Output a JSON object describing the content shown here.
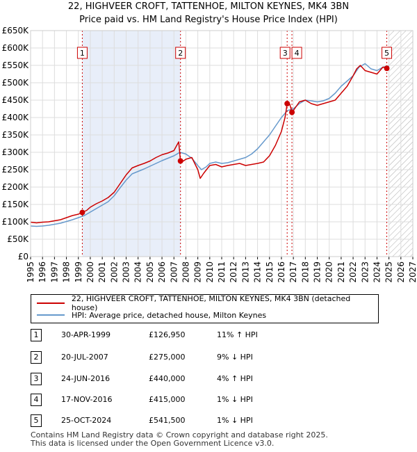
{
  "title": "22, HIGHVEER CROFT, TATTENHOE, MILTON KEYNES, MK4 3BN",
  "subtitle": "Price paid vs. HM Land Registry's House Price Index (HPI)",
  "colors": {
    "property": "#cc0000",
    "hpi": "#6699cc",
    "shade": "#e8eef9",
    "grid": "#dddddd"
  },
  "chart_data": {
    "type": "line",
    "title": "Price paid vs. HM Land Registry's House Price Index (HPI)",
    "xlim": [
      1995,
      2027
    ],
    "ylim": [
      0,
      650000
    ],
    "x_ticks": [
      "1995",
      "1996",
      "1997",
      "1998",
      "1999",
      "2000",
      "2001",
      "2002",
      "2003",
      "2004",
      "2005",
      "2006",
      "2007",
      "2008",
      "2009",
      "2010",
      "2011",
      "2012",
      "2013",
      "2014",
      "2015",
      "2016",
      "2017",
      "2018",
      "2019",
      "2020",
      "2021",
      "2022",
      "2023",
      "2024",
      "2025",
      "2026",
      "2027"
    ],
    "y_ticks": [
      {
        "value": 0,
        "label": "£0"
      },
      {
        "value": 50000,
        "label": "£50K"
      },
      {
        "value": 100000,
        "label": "£100K"
      },
      {
        "value": 150000,
        "label": "£150K"
      },
      {
        "value": 200000,
        "label": "£200K"
      },
      {
        "value": 250000,
        "label": "£250K"
      },
      {
        "value": 300000,
        "label": "£300K"
      },
      {
        "value": 350000,
        "label": "£350K"
      },
      {
        "value": 400000,
        "label": "£400K"
      },
      {
        "value": 450000,
        "label": "£450K"
      },
      {
        "value": 500000,
        "label": "£500K"
      },
      {
        "value": 550000,
        "label": "£550K"
      },
      {
        "value": 600000,
        "label": "£600K"
      },
      {
        "value": 650000,
        "label": "£650K"
      }
    ],
    "shaded_period": [
      1999.33,
      2007.55
    ],
    "forecast_from": 2025.0,
    "series": [
      {
        "name": "22, HIGHVEER CROFT, TATTENHOE, MILTON KEYNES, MK4 3BN (detached house)",
        "color": "#cc0000",
        "x": [
          1995,
          1995.5,
          1996,
          1996.5,
          1997,
          1997.5,
          1998,
          1998.5,
          1999,
          1999.33,
          1999.7,
          2000,
          2000.5,
          2001,
          2001.5,
          2002,
          2002.5,
          2003,
          2003.5,
          2004,
          2004.5,
          2005,
          2005.5,
          2006,
          2006.5,
          2007,
          2007.4,
          2007.55,
          2007.8,
          2008,
          2008.5,
          2009,
          2009.2,
          2009.5,
          2010,
          2010.5,
          2011,
          2011.5,
          2012,
          2012.5,
          2013,
          2013.5,
          2014,
          2014.5,
          2015,
          2015.5,
          2016,
          2016.3,
          2016.48,
          2016.7,
          2016.88,
          2017,
          2017.5,
          2018,
          2018.5,
          2019,
          2019.5,
          2020,
          2020.5,
          2021,
          2021.5,
          2022,
          2022.3,
          2022.6,
          2023,
          2023.5,
          2024,
          2024.5,
          2024.82
        ],
        "values": [
          99000,
          97000,
          99000,
          100000,
          103000,
          106000,
          112000,
          118000,
          122000,
          126950,
          133000,
          142000,
          152000,
          160000,
          170000,
          185000,
          210000,
          235000,
          255000,
          262000,
          268000,
          275000,
          285000,
          293000,
          298000,
          305000,
          330000,
          275000,
          275000,
          280000,
          285000,
          250000,
          225000,
          240000,
          262000,
          265000,
          258000,
          262000,
          265000,
          268000,
          262000,
          265000,
          268000,
          272000,
          290000,
          320000,
          360000,
          400000,
          440000,
          438000,
          415000,
          420000,
          445000,
          450000,
          440000,
          435000,
          440000,
          445000,
          450000,
          470000,
          490000,
          520000,
          540000,
          550000,
          535000,
          530000,
          525000,
          545000,
          541500
        ]
      },
      {
        "name": "HPI: Average price, detached house, Milton Keynes",
        "color": "#6699cc",
        "x": [
          1995,
          1995.5,
          1996,
          1996.5,
          1997,
          1997.5,
          1998,
          1998.5,
          1999,
          1999.5,
          2000,
          2000.5,
          2001,
          2001.5,
          2002,
          2002.5,
          2003,
          2003.5,
          2004,
          2004.5,
          2005,
          2005.5,
          2006,
          2006.5,
          2007,
          2007.5,
          2008,
          2008.5,
          2009,
          2009.3,
          2009.7,
          2010,
          2010.5,
          2011,
          2011.5,
          2012,
          2012.5,
          2013,
          2013.5,
          2014,
          2014.5,
          2015,
          2015.5,
          2016,
          2016.5,
          2017,
          2017.5,
          2018,
          2018.5,
          2019,
          2019.5,
          2020,
          2020.5,
          2021,
          2021.5,
          2022,
          2022.5,
          2023,
          2023.5,
          2024,
          2024.5,
          2025
        ],
        "values": [
          88000,
          87000,
          88000,
          90000,
          93000,
          96000,
          101000,
          106000,
          112000,
          118000,
          128000,
          138000,
          148000,
          158000,
          175000,
          198000,
          220000,
          238000,
          245000,
          252000,
          260000,
          268000,
          276000,
          283000,
          290000,
          300000,
          295000,
          283000,
          262000,
          250000,
          258000,
          268000,
          272000,
          268000,
          270000,
          275000,
          280000,
          285000,
          295000,
          310000,
          330000,
          350000,
          375000,
          400000,
          420000,
          425000,
          440000,
          450000,
          448000,
          445000,
          448000,
          455000,
          470000,
          490000,
          505000,
          520000,
          545000,
          555000,
          540000,
          535000,
          545000,
          548000
        ]
      }
    ],
    "sales": [
      {
        "label": "1",
        "x": 1999.33,
        "price": 126950
      },
      {
        "label": "2",
        "x": 2007.55,
        "price": 275000
      },
      {
        "label": "3",
        "x": 2016.48,
        "price": 440000
      },
      {
        "label": "4",
        "x": 2016.88,
        "price": 415000
      },
      {
        "label": "5",
        "x": 2024.82,
        "price": 541500
      }
    ]
  },
  "legend": {
    "property": "22, HIGHVEER CROFT, TATTENHOE, MILTON KEYNES, MK4 3BN (detached house)",
    "hpi": "HPI: Average price, detached house, Milton Keynes"
  },
  "transactions": [
    {
      "num": "1",
      "date": "30-APR-1999",
      "price": "£126,950",
      "hpi": "11% ↑ HPI"
    },
    {
      "num": "2",
      "date": "20-JUL-2007",
      "price": "£275,000",
      "hpi": "9% ↓ HPI"
    },
    {
      "num": "3",
      "date": "24-JUN-2016",
      "price": "£440,000",
      "hpi": "4% ↑ HPI"
    },
    {
      "num": "4",
      "date": "17-NOV-2016",
      "price": "£415,000",
      "hpi": "1% ↓ HPI"
    },
    {
      "num": "5",
      "date": "25-OCT-2024",
      "price": "£541,500",
      "hpi": "1% ↓ HPI"
    }
  ],
  "footer": {
    "line1": "Contains HM Land Registry data © Crown copyright and database right 2025.",
    "line2": "This data is licensed under the Open Government Licence v3.0."
  }
}
